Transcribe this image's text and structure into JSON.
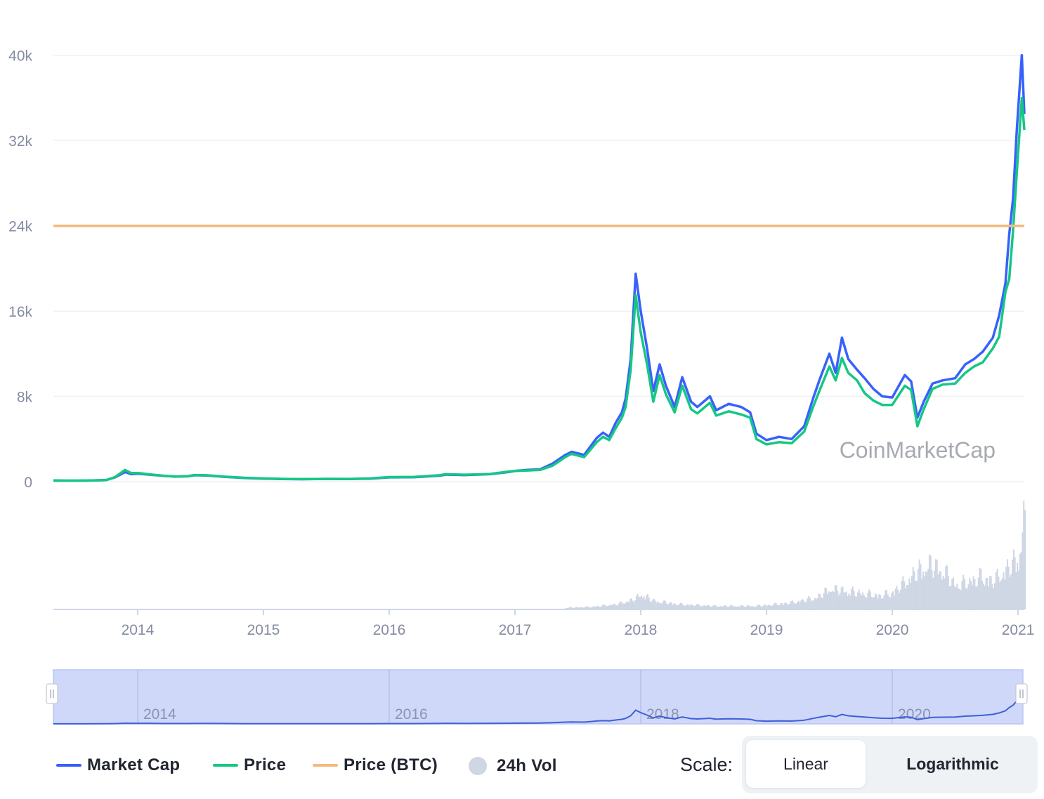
{
  "chart_data": {
    "type": "line",
    "watermark": "CoinMarketCap",
    "y_axis": {
      "ticks": [
        0,
        8000,
        16000,
        24000,
        32000,
        40000
      ],
      "tick_labels": [
        "0",
        "8k",
        "16k",
        "24k",
        "32k",
        "40k"
      ],
      "ylim": [
        0,
        44000
      ]
    },
    "x_axis": {
      "ticks": [
        2014,
        2015,
        2016,
        2017,
        2018,
        2019,
        2020,
        2021
      ],
      "tick_labels": [
        "2014",
        "2015",
        "2016",
        "2017",
        "2018",
        "2019",
        "2020",
        "2021"
      ],
      "xlim": [
        2013.33,
        2021.05
      ]
    },
    "grid": true,
    "series": [
      {
        "name": "Market Cap",
        "color": "#3861fb",
        "points": [
          [
            2013.33,
            100
          ],
          [
            2013.45,
            90
          ],
          [
            2013.6,
            100
          ],
          [
            2013.75,
            150
          ],
          [
            2013.82,
            400
          ],
          [
            2013.9,
            900
          ],
          [
            2013.95,
            700
          ],
          [
            2014.0,
            750
          ],
          [
            2014.1,
            650
          ],
          [
            2014.2,
            550
          ],
          [
            2014.3,
            480
          ],
          [
            2014.4,
            500
          ],
          [
            2014.45,
            600
          ],
          [
            2014.55,
            580
          ],
          [
            2014.7,
            450
          ],
          [
            2014.85,
            350
          ],
          [
            2015.0,
            280
          ],
          [
            2015.15,
            250
          ],
          [
            2015.3,
            230
          ],
          [
            2015.5,
            260
          ],
          [
            2015.7,
            250
          ],
          [
            2015.85,
            280
          ],
          [
            2016.0,
            400
          ],
          [
            2016.2,
            420
          ],
          [
            2016.4,
            560
          ],
          [
            2016.45,
            660
          ],
          [
            2016.6,
            620
          ],
          [
            2016.8,
            700
          ],
          [
            2016.95,
            900
          ],
          [
            2017.0,
            1000
          ],
          [
            2017.1,
            1100
          ],
          [
            2017.2,
            1150
          ],
          [
            2017.3,
            1700
          ],
          [
            2017.4,
            2500
          ],
          [
            2017.45,
            2800
          ],
          [
            2017.55,
            2500
          ],
          [
            2017.6,
            3300
          ],
          [
            2017.65,
            4100
          ],
          [
            2017.7,
            4600
          ],
          [
            2017.75,
            4200
          ],
          [
            2017.8,
            5500
          ],
          [
            2017.85,
            6500
          ],
          [
            2017.88,
            7800
          ],
          [
            2017.92,
            11500
          ],
          [
            2017.96,
            19500
          ],
          [
            2018.0,
            16000
          ],
          [
            2018.05,
            12500
          ],
          [
            2018.1,
            8500
          ],
          [
            2018.15,
            11000
          ],
          [
            2018.2,
            9000
          ],
          [
            2018.27,
            7000
          ],
          [
            2018.33,
            9800
          ],
          [
            2018.4,
            7500
          ],
          [
            2018.45,
            7000
          ],
          [
            2018.55,
            8000
          ],
          [
            2018.6,
            6700
          ],
          [
            2018.7,
            7300
          ],
          [
            2018.8,
            7000
          ],
          [
            2018.87,
            6500
          ],
          [
            2018.92,
            4500
          ],
          [
            2019.0,
            3900
          ],
          [
            2019.1,
            4200
          ],
          [
            2019.2,
            4000
          ],
          [
            2019.3,
            5200
          ],
          [
            2019.37,
            7800
          ],
          [
            2019.42,
            9500
          ],
          [
            2019.5,
            12000
          ],
          [
            2019.55,
            10200
          ],
          [
            2019.6,
            13500
          ],
          [
            2019.65,
            11500
          ],
          [
            2019.72,
            10500
          ],
          [
            2019.78,
            9700
          ],
          [
            2019.85,
            8700
          ],
          [
            2019.92,
            8000
          ],
          [
            2020.0,
            7900
          ],
          [
            2020.1,
            10000
          ],
          [
            2020.15,
            9400
          ],
          [
            2020.2,
            6000
          ],
          [
            2020.25,
            7500
          ],
          [
            2020.32,
            9200
          ],
          [
            2020.4,
            9500
          ],
          [
            2020.5,
            9700
          ],
          [
            2020.58,
            11000
          ],
          [
            2020.65,
            11500
          ],
          [
            2020.72,
            12200
          ],
          [
            2020.8,
            13500
          ],
          [
            2020.85,
            15600
          ],
          [
            2020.9,
            18600
          ],
          [
            2020.93,
            23200
          ],
          [
            2020.96,
            26500
          ],
          [
            2020.99,
            33000
          ],
          [
            2021.03,
            40000
          ],
          [
            2021.05,
            34500
          ]
        ]
      },
      {
        "name": "Price",
        "color": "#16c784",
        "points": [
          [
            2013.33,
            110
          ],
          [
            2013.45,
            95
          ],
          [
            2013.6,
            105
          ],
          [
            2013.75,
            150
          ],
          [
            2013.82,
            420
          ],
          [
            2013.9,
            1100
          ],
          [
            2013.95,
            800
          ],
          [
            2014.0,
            820
          ],
          [
            2014.1,
            680
          ],
          [
            2014.2,
            560
          ],
          [
            2014.3,
            470
          ],
          [
            2014.4,
            520
          ],
          [
            2014.45,
            620
          ],
          [
            2014.55,
            600
          ],
          [
            2014.7,
            460
          ],
          [
            2014.85,
            360
          ],
          [
            2015.0,
            300
          ],
          [
            2015.15,
            260
          ],
          [
            2015.3,
            240
          ],
          [
            2015.5,
            260
          ],
          [
            2015.7,
            260
          ],
          [
            2015.85,
            300
          ],
          [
            2016.0,
            430
          ],
          [
            2016.2,
            440
          ],
          [
            2016.4,
            600
          ],
          [
            2016.45,
            700
          ],
          [
            2016.6,
            650
          ],
          [
            2016.8,
            720
          ],
          [
            2016.95,
            950
          ],
          [
            2017.0,
            1000
          ],
          [
            2017.1,
            1050
          ],
          [
            2017.2,
            1100
          ],
          [
            2017.3,
            1500
          ],
          [
            2017.4,
            2300
          ],
          [
            2017.45,
            2600
          ],
          [
            2017.55,
            2300
          ],
          [
            2017.6,
            3000
          ],
          [
            2017.65,
            3700
          ],
          [
            2017.7,
            4200
          ],
          [
            2017.75,
            3900
          ],
          [
            2017.8,
            5000
          ],
          [
            2017.85,
            6000
          ],
          [
            2017.88,
            7000
          ],
          [
            2017.92,
            10500
          ],
          [
            2017.96,
            17500
          ],
          [
            2018.0,
            14000
          ],
          [
            2018.05,
            11000
          ],
          [
            2018.1,
            7500
          ],
          [
            2018.15,
            10000
          ],
          [
            2018.2,
            8200
          ],
          [
            2018.27,
            6500
          ],
          [
            2018.33,
            9000
          ],
          [
            2018.4,
            6800
          ],
          [
            2018.45,
            6400
          ],
          [
            2018.55,
            7400
          ],
          [
            2018.6,
            6200
          ],
          [
            2018.7,
            6600
          ],
          [
            2018.8,
            6300
          ],
          [
            2018.87,
            6000
          ],
          [
            2018.92,
            4000
          ],
          [
            2019.0,
            3500
          ],
          [
            2019.1,
            3700
          ],
          [
            2019.2,
            3600
          ],
          [
            2019.3,
            4700
          ],
          [
            2019.37,
            7000
          ],
          [
            2019.42,
            8500
          ],
          [
            2019.5,
            10800
          ],
          [
            2019.55,
            9500
          ],
          [
            2019.6,
            11600
          ],
          [
            2019.65,
            10200
          ],
          [
            2019.72,
            9500
          ],
          [
            2019.78,
            8300
          ],
          [
            2019.85,
            7600
          ],
          [
            2019.92,
            7200
          ],
          [
            2020.0,
            7200
          ],
          [
            2020.1,
            9000
          ],
          [
            2020.15,
            8600
          ],
          [
            2020.2,
            5200
          ],
          [
            2020.25,
            6800
          ],
          [
            2020.32,
            8700
          ],
          [
            2020.4,
            9100
          ],
          [
            2020.5,
            9200
          ],
          [
            2020.58,
            10200
          ],
          [
            2020.65,
            10800
          ],
          [
            2020.72,
            11200
          ],
          [
            2020.8,
            12500
          ],
          [
            2020.85,
            13600
          ],
          [
            2020.9,
            17800
          ],
          [
            2020.93,
            19000
          ],
          [
            2020.96,
            23500
          ],
          [
            2020.99,
            29000
          ],
          [
            2021.03,
            36000
          ],
          [
            2021.05,
            33000
          ]
        ]
      },
      {
        "name": "Price (BTC)",
        "color": "#f6b87e",
        "value": 24000
      }
    ],
    "volume": {
      "name": "24h Vol",
      "color": "#cfd6e4",
      "points": [
        [
          2017.4,
          2
        ],
        [
          2017.6,
          3
        ],
        [
          2017.8,
          6
        ],
        [
          2017.95,
          12
        ],
        [
          2018.0,
          18
        ],
        [
          2018.1,
          10
        ],
        [
          2018.3,
          6
        ],
        [
          2018.6,
          4
        ],
        [
          2018.9,
          4
        ],
        [
          2019.0,
          5
        ],
        [
          2019.2,
          8
        ],
        [
          2019.4,
          14
        ],
        [
          2019.5,
          24
        ],
        [
          2019.6,
          22
        ],
        [
          2019.8,
          18
        ],
        [
          2019.9,
          16
        ],
        [
          2020.0,
          20
        ],
        [
          2020.1,
          32
        ],
        [
          2020.2,
          45
        ],
        [
          2020.3,
          52
        ],
        [
          2020.4,
          45
        ],
        [
          2020.5,
          28
        ],
        [
          2020.6,
          32
        ],
        [
          2020.7,
          38
        ],
        [
          2020.8,
          33
        ],
        [
          2020.9,
          46
        ],
        [
          2021.0,
          60
        ],
        [
          2021.04,
          100
        ]
      ]
    },
    "navigator": {
      "tick_labels": [
        "2014",
        "2016",
        "2018",
        "2020"
      ],
      "ticks": [
        2014,
        2016,
        2018,
        2020
      ]
    }
  },
  "legend": {
    "market_cap": "Market Cap",
    "price": "Price",
    "price_btc": "Price (BTC)",
    "vol": "24h Vol"
  },
  "scale": {
    "label": "Scale:",
    "linear": "Linear",
    "log": "Logarithmic"
  }
}
